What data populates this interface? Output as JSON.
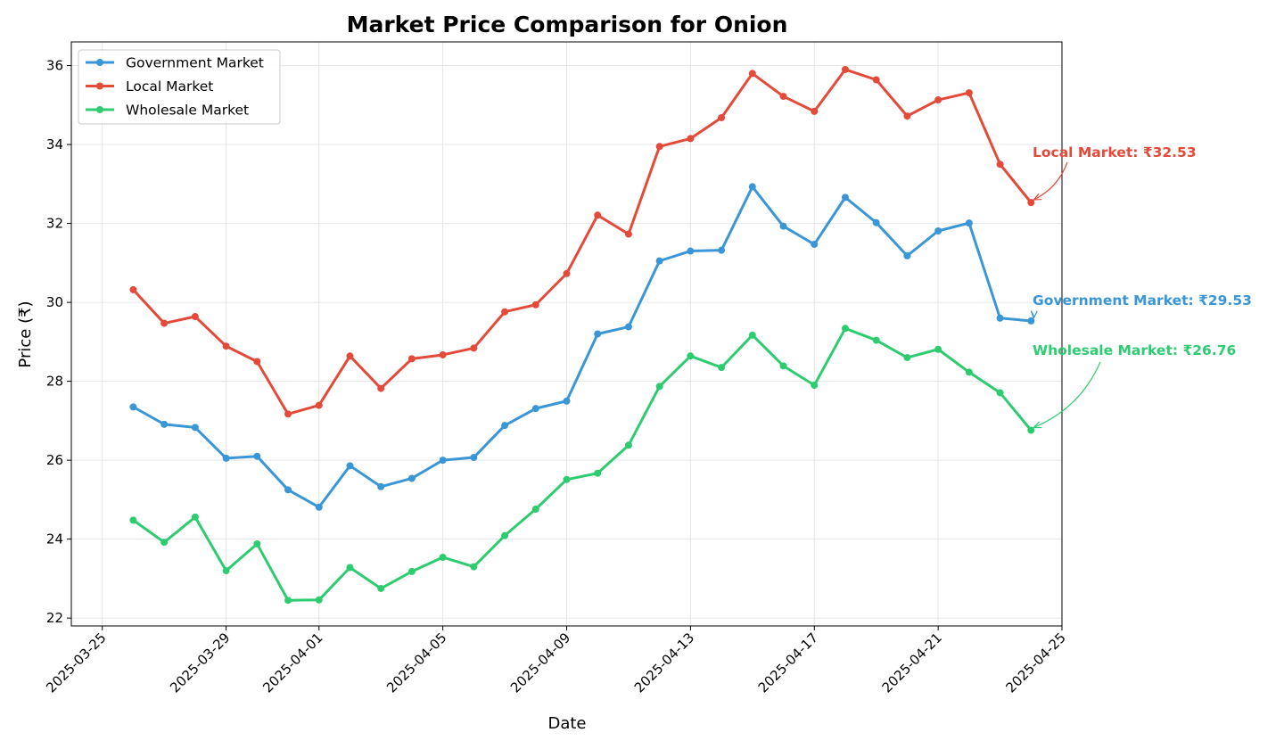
{
  "chart_data": {
    "type": "line",
    "title": "Market Price Comparison for Onion",
    "xlabel": "Date",
    "ylabel": "Price (₹)",
    "grid": true,
    "legend_position": "top-left",
    "xlim": [
      "2025-03-24",
      "2025-04-25"
    ],
    "ylim": [
      21.8,
      36.6
    ],
    "x_ticks": [
      "2025-03-25",
      "2025-03-29",
      "2025-04-01",
      "2025-04-05",
      "2025-04-09",
      "2025-04-13",
      "2025-04-17",
      "2025-04-21",
      "2025-04-25"
    ],
    "y_ticks": [
      22,
      24,
      26,
      28,
      30,
      32,
      34,
      36
    ],
    "x": [
      "2025-03-26",
      "2025-03-27",
      "2025-03-28",
      "2025-03-29",
      "2025-03-30",
      "2025-03-31",
      "2025-04-01",
      "2025-04-02",
      "2025-04-03",
      "2025-04-04",
      "2025-04-05",
      "2025-04-06",
      "2025-04-07",
      "2025-04-08",
      "2025-04-09",
      "2025-04-10",
      "2025-04-11",
      "2025-04-12",
      "2025-04-13",
      "2025-04-14",
      "2025-04-15",
      "2025-04-16",
      "2025-04-17",
      "2025-04-18",
      "2025-04-19",
      "2025-04-20",
      "2025-04-21",
      "2025-04-22",
      "2025-04-23",
      "2025-04-24"
    ],
    "series": [
      {
        "name": "Government Market",
        "color": "#3a96d6",
        "values": [
          27.35,
          26.91,
          26.83,
          26.05,
          26.1,
          25.25,
          24.81,
          25.86,
          25.33,
          25.54,
          26.0,
          26.07,
          26.88,
          27.31,
          27.5,
          29.2,
          29.38,
          31.05,
          31.3,
          31.32,
          32.93,
          31.93,
          31.47,
          32.66,
          32.02,
          31.18,
          31.81,
          32.01,
          29.6,
          29.53
        ]
      },
      {
        "name": "Local Market",
        "color": "#e34a3a",
        "values": [
          30.32,
          29.47,
          29.64,
          28.89,
          28.5,
          27.17,
          27.39,
          28.64,
          27.82,
          28.57,
          28.67,
          28.84,
          29.76,
          29.94,
          30.73,
          32.21,
          31.73,
          33.95,
          34.15,
          34.68,
          35.8,
          35.22,
          34.84,
          35.9,
          35.64,
          34.72,
          35.13,
          35.31,
          33.5,
          32.53
        ]
      },
      {
        "name": "Wholesale Market",
        "color": "#2ecc71",
        "values": [
          24.48,
          23.92,
          24.56,
          23.2,
          23.88,
          22.45,
          22.46,
          23.28,
          22.75,
          23.18,
          23.54,
          23.3,
          24.09,
          24.76,
          25.51,
          25.67,
          26.38,
          27.87,
          28.64,
          28.35,
          29.17,
          28.39,
          27.9,
          29.34,
          29.04,
          28.6,
          28.81,
          28.23,
          27.71,
          26.76
        ]
      }
    ],
    "annotations": [
      {
        "text": "Local Market: ₹32.53",
        "series": "Local Market",
        "x": "2025-04-24",
        "y": 32.53,
        "color": "#e34a3a"
      },
      {
        "text": "Government Market: ₹29.53",
        "series": "Government Market",
        "x": "2025-04-24",
        "y": 29.53,
        "color": "#3a96d6"
      },
      {
        "text": "Wholesale Market: ₹26.76",
        "series": "Wholesale Market",
        "x": "2025-04-24",
        "y": 26.76,
        "color": "#2ecc71"
      }
    ]
  }
}
